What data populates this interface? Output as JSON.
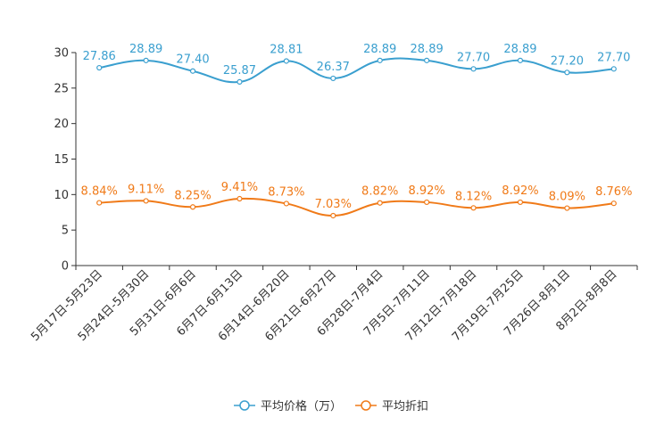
{
  "chart_data": {
    "type": "line",
    "categories": [
      "5月17日-5月23日",
      "5月24日-5月30日",
      "5月31日-6月6日",
      "6月7日-6月13日",
      "6月14日-6月20日",
      "6月21日-6月27日",
      "6月28日-7月4日",
      "7月5日-7月11日",
      "7月12日-7月18日",
      "7月19日-7月25日",
      "7月26日-8月1日",
      "8月2日-8月8日"
    ],
    "series": [
      {
        "name": "平均价格（万）",
        "color": "#3a9fcf",
        "values": [
          27.86,
          28.89,
          27.4,
          25.87,
          28.81,
          26.37,
          28.89,
          28.89,
          27.7,
          28.89,
          27.2,
          27.7
        ],
        "labels": [
          "27.86",
          "28.89",
          "27.40",
          "25.87",
          "28.81",
          "26.37",
          "28.89",
          "28.89",
          "27.70",
          "28.89",
          "27.20",
          "27.70"
        ]
      },
      {
        "name": "平均折扣",
        "color": "#f07a18",
        "values": [
          8.84,
          9.11,
          8.25,
          9.41,
          8.73,
          7.03,
          8.82,
          8.92,
          8.12,
          8.92,
          8.09,
          8.76
        ],
        "labels": [
          "8.84%",
          "9.11%",
          "8.25%",
          "9.41%",
          "8.73%",
          "7.03%",
          "8.82%",
          "8.92%",
          "8.12%",
          "8.92%",
          "8.09%",
          "8.76%"
        ]
      }
    ],
    "yticks": [
      0,
      5,
      10,
      15,
      20,
      25,
      30
    ],
    "ylim": [
      0,
      30
    ],
    "grid": false,
    "legend": "bottom-center"
  }
}
